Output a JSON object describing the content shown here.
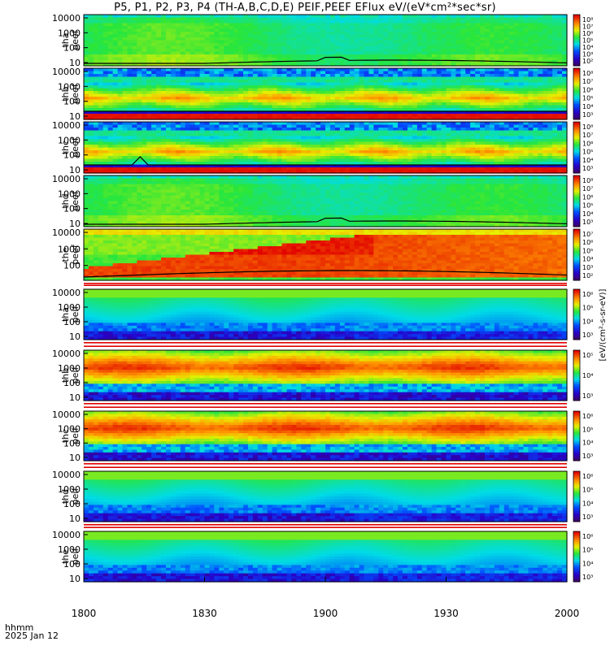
{
  "title": "P5, P1, P2, P3, P4 (TH-A,B,C,D,E) PEIF,PEEF EFlux eV/(eV*cm²*sec*sr)",
  "footer": {
    "time_label": "hhmm",
    "date_label": "2025 Jan 12"
  },
  "chart_data": [
    {
      "type": "heatmap",
      "probe": "tha",
      "product": "peef",
      "ylabel": [
        "tha",
        "peef"
      ],
      "yticks": [
        "10000",
        "1000",
        "100",
        "10"
      ],
      "colorbar_ticks": [
        "10⁸",
        "10⁷",
        "10⁶",
        "10⁵",
        "10⁴",
        "10³",
        "10²"
      ],
      "palette": "green",
      "black_line": true
    },
    {
      "type": "heatmap",
      "probe": "thb",
      "product": "peef",
      "ylabel": [
        "thb",
        "peef"
      ],
      "yticks": [
        "10000",
        "1000",
        "100",
        "10"
      ],
      "colorbar_ticks": [
        "10⁸",
        "10⁷",
        "10⁶",
        "10⁵",
        "10⁴",
        "10³"
      ],
      "palette": "bands",
      "black_line": true
    },
    {
      "type": "heatmap",
      "probe": "thc",
      "product": "peef",
      "ylabel": [
        "thc",
        "peef"
      ],
      "yticks": [
        "10000",
        "1000",
        "100",
        "10"
      ],
      "colorbar_ticks": [
        "10⁸",
        "10⁷",
        "10⁶",
        "10⁵",
        "10⁴",
        "10³"
      ],
      "palette": "bands",
      "black_line": true
    },
    {
      "type": "heatmap",
      "probe": "thd",
      "product": "peef",
      "ylabel": [
        "thd",
        "peef"
      ],
      "yticks": [
        "10000",
        "1000",
        "100",
        "10"
      ],
      "colorbar_ticks": [
        "10⁸",
        "10⁷",
        "10⁶",
        "10⁵",
        "10⁴",
        "10³"
      ],
      "palette": "green",
      "black_line": true
    },
    {
      "type": "heatmap",
      "probe": "the",
      "product": "peef",
      "ylabel": [
        "the",
        "peef"
      ],
      "yticks": [
        "10000",
        "1000",
        "100"
      ],
      "colorbar_ticks": [
        "10⁷",
        "10⁶",
        "10⁵",
        "10⁴",
        "10³",
        "10²"
      ],
      "palette": "red",
      "black_line": true
    },
    {
      "type": "heatmap",
      "probe": "tha",
      "product": "peif",
      "ylabel": [
        "tha",
        "peif"
      ],
      "yticks": [
        "10000",
        "1000",
        "100",
        "10"
      ],
      "colorbar_ticks": [
        "10⁶",
        "10⁵",
        "10⁴",
        "10³"
      ],
      "palette": "ion_cool",
      "black_line": false
    },
    {
      "type": "heatmap",
      "probe": "thb",
      "product": "peif",
      "ylabel": [
        "thb",
        "peif"
      ],
      "yticks": [
        "10000",
        "1000",
        "100",
        "10"
      ],
      "colorbar_ticks": [
        "10⁵",
        "10⁴",
        "10³"
      ],
      "palette": "ion_hot",
      "black_line": false
    },
    {
      "type": "heatmap",
      "probe": "thc",
      "product": "peif",
      "ylabel": [
        "thc",
        "peif"
      ],
      "yticks": [
        "10000",
        "1000",
        "100",
        "10"
      ],
      "colorbar_ticks": [
        "10⁶",
        "10⁵",
        "10⁴",
        "10³"
      ],
      "palette": "ion_hot",
      "black_line": false
    },
    {
      "type": "heatmap",
      "probe": "thd",
      "product": "peif",
      "ylabel": [
        "thd",
        "peif"
      ],
      "yticks": [
        "10000",
        "1000",
        "100",
        "10"
      ],
      "colorbar_ticks": [
        "10⁶",
        "10⁵",
        "10⁴",
        "10³"
      ],
      "palette": "ion_cool",
      "black_line": false
    },
    {
      "type": "heatmap",
      "probe": "the",
      "product": "peif",
      "ylabel": [
        "the",
        "peif"
      ],
      "yticks": [
        "10000",
        "1000",
        "100",
        "10"
      ],
      "colorbar_ticks": [
        "10⁶",
        "10⁵",
        "10⁴",
        "10³"
      ],
      "palette": "ion_cool",
      "black_line": false
    }
  ],
  "x_axis": {
    "ticks": [
      "1800",
      "1830",
      "1900",
      "1930",
      "2000"
    ]
  },
  "colorbar_axis_label": "[eV/(cm²-s-sr-eV)]"
}
